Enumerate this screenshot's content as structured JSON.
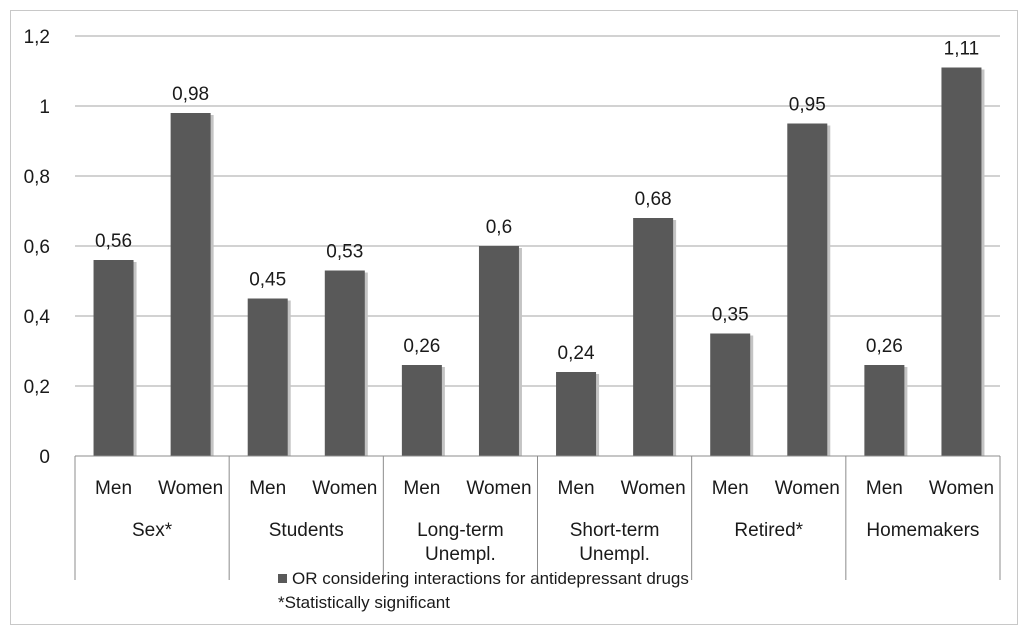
{
  "chart_data": {
    "type": "bar",
    "groups": [
      {
        "label": [
          "Sex*"
        ],
        "bars": [
          {
            "label": "Men",
            "value": 0.56,
            "value_label": "0,56"
          },
          {
            "label": "Women",
            "value": 0.98,
            "value_label": "0,98"
          }
        ]
      },
      {
        "label": [
          "Students"
        ],
        "bars": [
          {
            "label": "Men",
            "value": 0.45,
            "value_label": "0,45"
          },
          {
            "label": "Women",
            "value": 0.53,
            "value_label": "0,53"
          }
        ]
      },
      {
        "label": [
          "Long-term",
          "Unempl."
        ],
        "bars": [
          {
            "label": "Men",
            "value": 0.26,
            "value_label": "0,26"
          },
          {
            "label": "Women",
            "value": 0.6,
            "value_label": "0,6"
          }
        ]
      },
      {
        "label": [
          "Short-term",
          "Unempl."
        ],
        "bars": [
          {
            "label": "Men",
            "value": 0.24,
            "value_label": "0,24"
          },
          {
            "label": "Women",
            "value": 0.68,
            "value_label": "0,68"
          }
        ]
      },
      {
        "label": [
          "Retired*"
        ],
        "bars": [
          {
            "label": "Men",
            "value": 0.35,
            "value_label": "0,35"
          },
          {
            "label": "Women",
            "value": 0.95,
            "value_label": "0,95"
          }
        ]
      },
      {
        "label": [
          "Homemakers"
        ],
        "bars": [
          {
            "label": "Men",
            "value": 0.26,
            "value_label": "0,26"
          },
          {
            "label": "Women",
            "value": 1.11,
            "value_label": "1,11"
          }
        ]
      }
    ],
    "series": [
      {
        "name": "OR considering interactions for antidepressant drugs",
        "color": "#595959"
      }
    ],
    "ylim": [
      0,
      1.2
    ],
    "yticks": [
      {
        "value": 0,
        "label": "0"
      },
      {
        "value": 0.2,
        "label": "0,2"
      },
      {
        "value": 0.4,
        "label": "0,4"
      },
      {
        "value": 0.6,
        "label": "0,6"
      },
      {
        "value": 0.8,
        "label": "0,8"
      },
      {
        "value": 1.0,
        "label": "1"
      },
      {
        "value": 1.2,
        "label": "1,2"
      }
    ],
    "grid": true,
    "legend_position": "bottom",
    "note": "*Statistically significant",
    "gridline_color": "#a6a6a6"
  }
}
